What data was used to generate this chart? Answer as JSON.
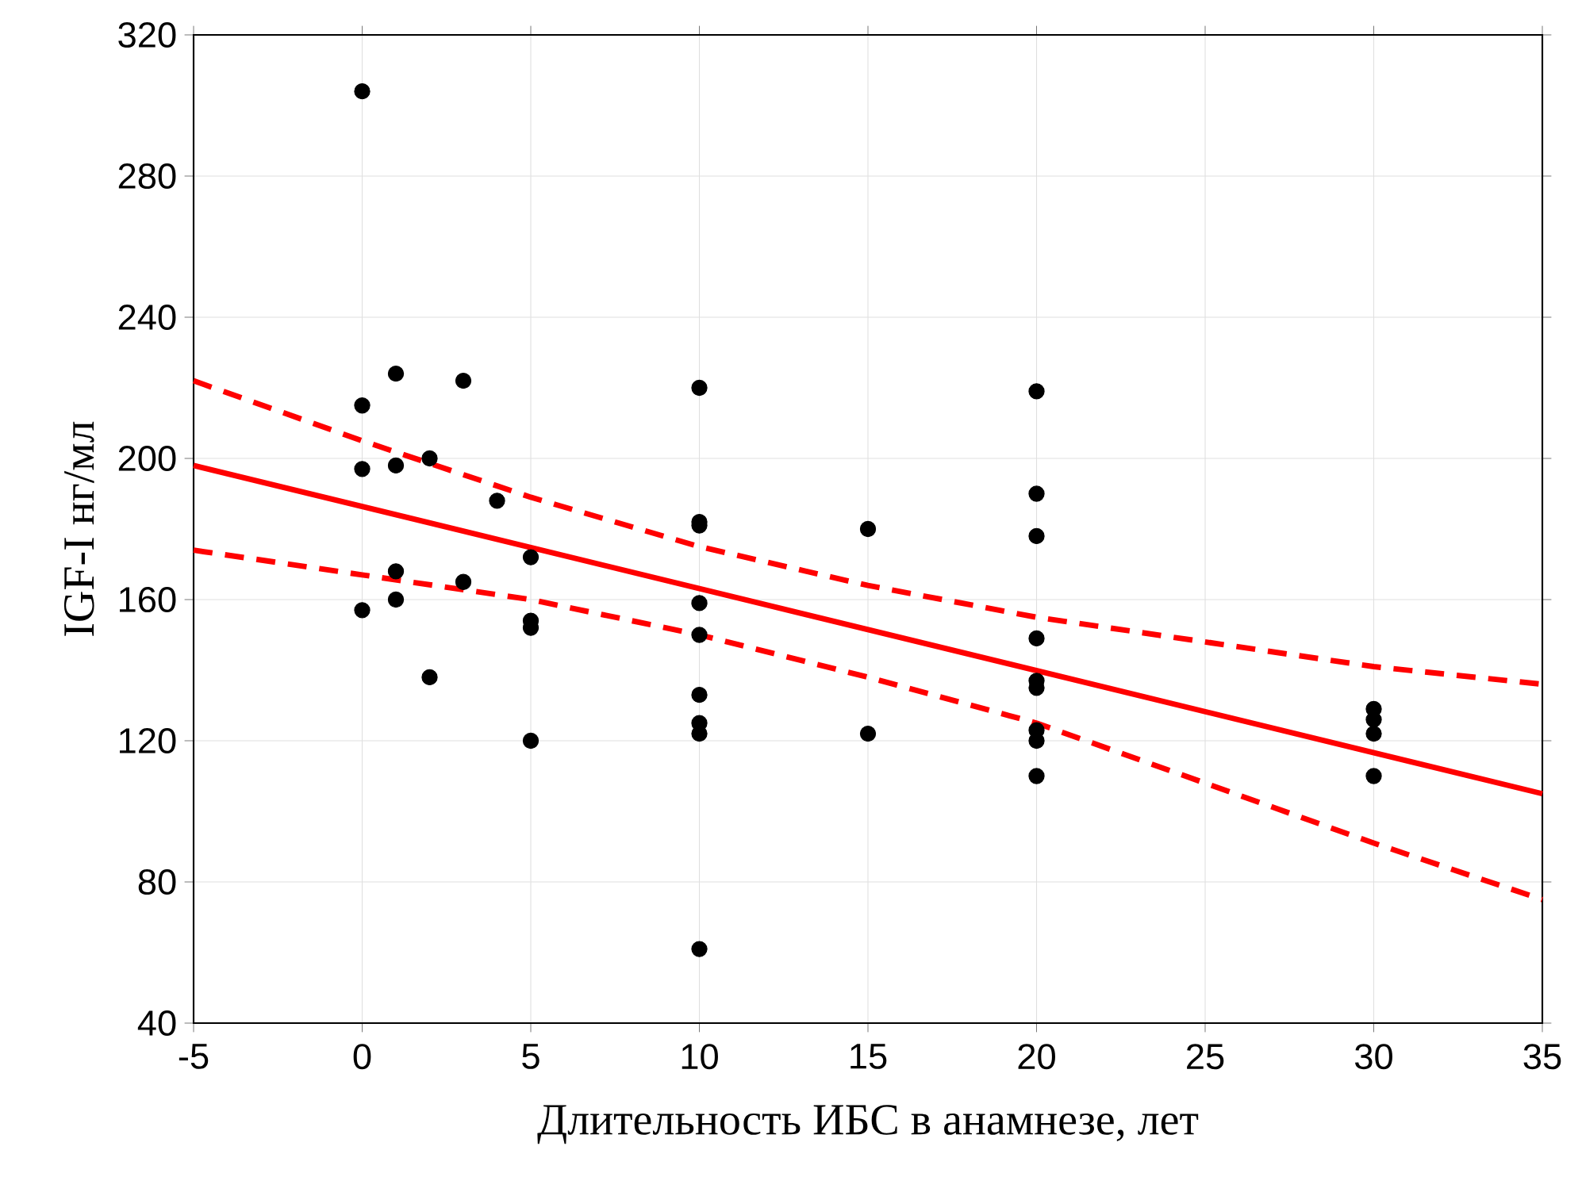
{
  "chart_data": {
    "type": "scatter",
    "xlabel": "Длительность ИБС в анамнезе, лет",
    "ylabel": "IGF-I нг/мл",
    "xlim": [
      -5,
      35
    ],
    "ylim": [
      40,
      320
    ],
    "xticks": [
      -5,
      0,
      5,
      10,
      15,
      20,
      25,
      30,
      35
    ],
    "yticks": [
      40,
      80,
      120,
      160,
      200,
      240,
      280,
      320
    ],
    "grid": true,
    "marker": "circle",
    "series": [
      {
        "color": "#000000",
        "x": [
          0,
          0,
          0,
          0,
          1,
          1,
          1,
          1,
          2,
          2,
          3,
          3,
          4,
          5,
          5,
          5,
          5,
          10,
          10,
          10,
          10,
          10,
          10,
          10,
          10,
          10,
          15,
          15,
          20,
          20,
          20,
          20,
          20,
          20,
          20,
          20,
          20,
          30,
          30,
          30,
          30
        ],
        "values": [
          304,
          215,
          197,
          157,
          224,
          198,
          168,
          160,
          200,
          138,
          222,
          165,
          188,
          172,
          154,
          152,
          120,
          220,
          182,
          181,
          159,
          150,
          133,
          125,
          122,
          61,
          180,
          122,
          219,
          190,
          178,
          149,
          137,
          135,
          123,
          120,
          110,
          129,
          126,
          122,
          110
        ]
      },
      {
        "type": "line",
        "color": "#ff0000",
        "line_style": "solid",
        "marker": "none",
        "x": [
          -5,
          35
        ],
        "values": [
          198,
          105
        ]
      },
      {
        "type": "line",
        "color": "#ff0000",
        "line_style": "dashed",
        "marker": "none",
        "x": [
          -5,
          0,
          5,
          10,
          15,
          20,
          25,
          30,
          35
        ],
        "values": [
          222,
          205,
          189,
          175,
          164,
          155,
          148,
          141,
          136
        ]
      },
      {
        "type": "line",
        "color": "#ff0000",
        "line_style": "dashed",
        "marker": "none",
        "x": [
          -5,
          0,
          5,
          10,
          15,
          20,
          25,
          30,
          35
        ],
        "values": [
          174,
          167,
          160,
          150,
          138,
          125,
          108,
          91,
          75
        ]
      }
    ]
  }
}
